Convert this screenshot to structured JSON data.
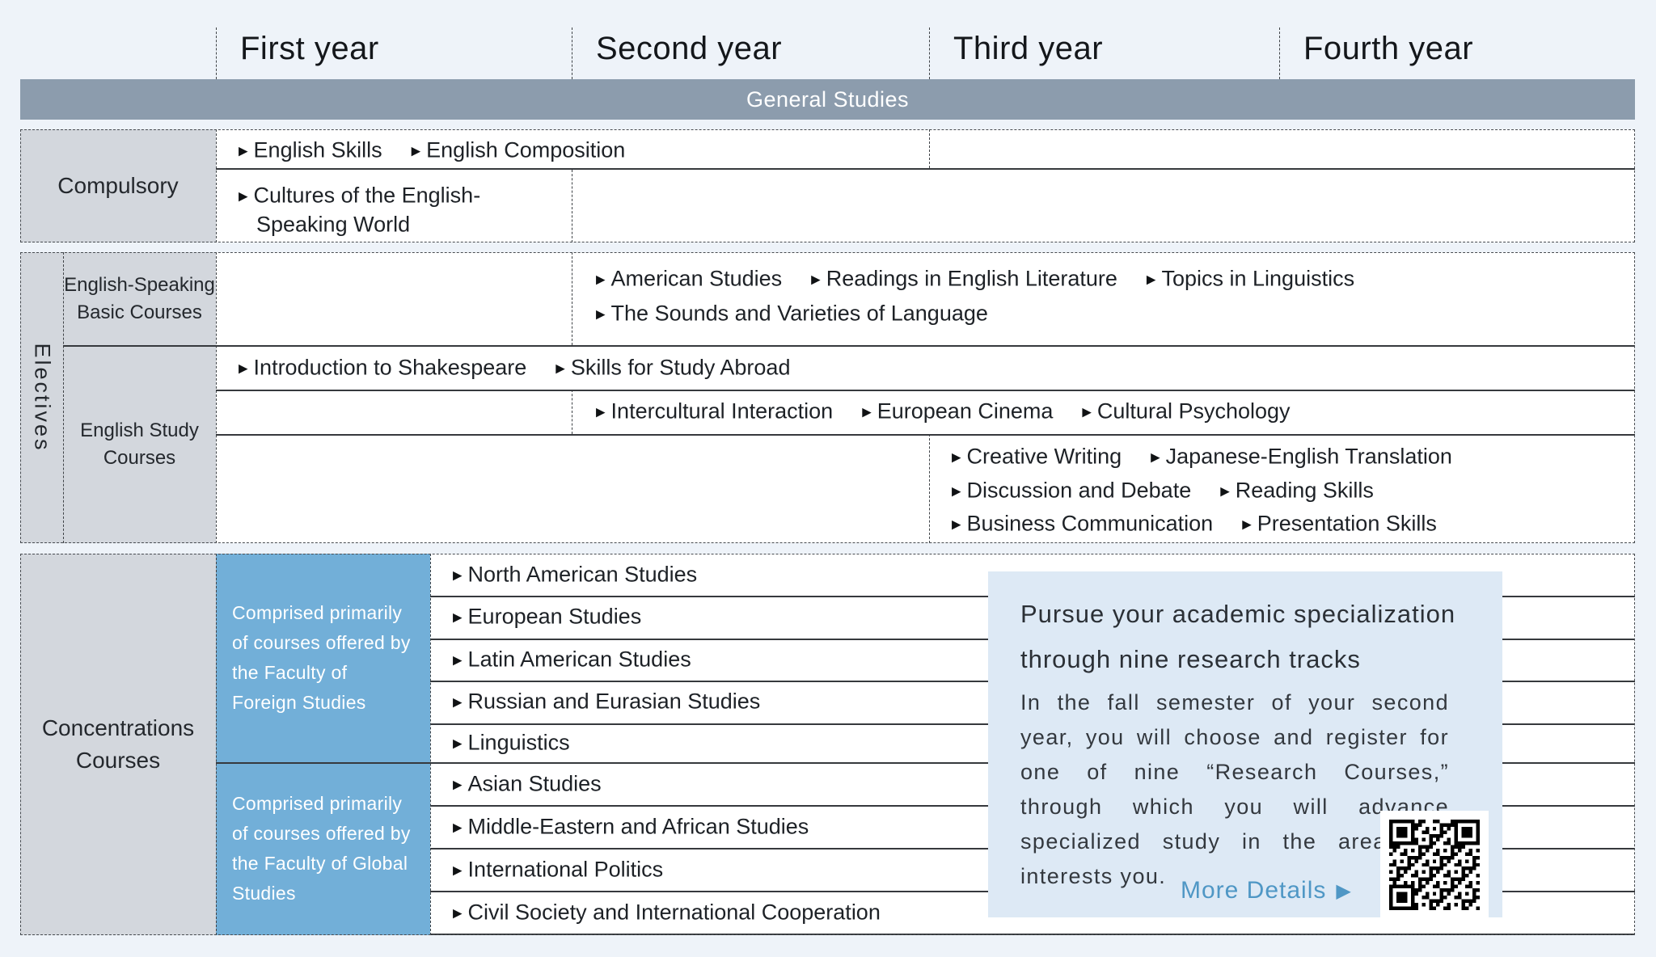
{
  "header": {
    "years": [
      "First year",
      "Second year",
      "Third year",
      "Fourth year"
    ]
  },
  "general_studies": {
    "label": "General Studies"
  },
  "compulsory": {
    "label": "Compulsory",
    "row1": {
      "courses": [
        "English Skills",
        "English Composition"
      ]
    },
    "row2": {
      "line1": "Cultures of the English-",
      "line2": "Speaking World"
    }
  },
  "electives": {
    "label": "Electives",
    "basic": {
      "label_line1": "English-Speaking",
      "label_line2": "Basic Courses",
      "line1": [
        "American Studies",
        "Readings in English Literature",
        "Topics in Linguistics"
      ],
      "line2": [
        "The Sounds and Varieties of Language"
      ]
    },
    "study": {
      "label_line1": "English Study",
      "label_line2": "Courses",
      "row1": [
        "Introduction to Shakespeare",
        "Skills for Study Abroad"
      ],
      "row2": [
        "Intercultural Interaction",
        "European Cinema",
        "Cultural Psychology"
      ],
      "row3": [
        [
          "Creative Writing",
          "Japanese-English Translation"
        ],
        [
          "Discussion and Debate",
          "Reading Skills"
        ],
        [
          "Business Communication",
          "Presentation Skills"
        ]
      ]
    }
  },
  "concentrations": {
    "label_line1": "Concentrations",
    "label_line2": "Courses",
    "notes": [
      "Comprised primarily of courses offered by the Faculty of Foreign Studies",
      "Comprised primarily of courses offered by the Faculty of Global Studies"
    ],
    "courses": [
      "North American Studies",
      "European Studies",
      "Latin American Studies",
      "Russian and Eurasian Studies",
      "Linguistics",
      "Asian Studies",
      "Middle-Eastern and African Studies",
      "International Politics",
      "Civil Society and International Cooperation"
    ]
  },
  "callout": {
    "title_line1": "Pursue your academic specialization",
    "title_line2": "through nine research tracks",
    "body": "In the fall semester of your second year, you will choose and register for one of nine “Research Courses,” through which you will advance specialized study in the area that interests you.",
    "more_details": "More Details"
  },
  "icons": {
    "triangle": "▶"
  },
  "colors": {
    "page_bg": "#eef3f9",
    "banner_bg": "#8c9cad",
    "label_bg": "#d3d7dd",
    "faculty_blue": "#72afd8",
    "callout_bg": "#dde9f5",
    "link_blue": "#4f97c5",
    "line_dark": "#36393d"
  }
}
